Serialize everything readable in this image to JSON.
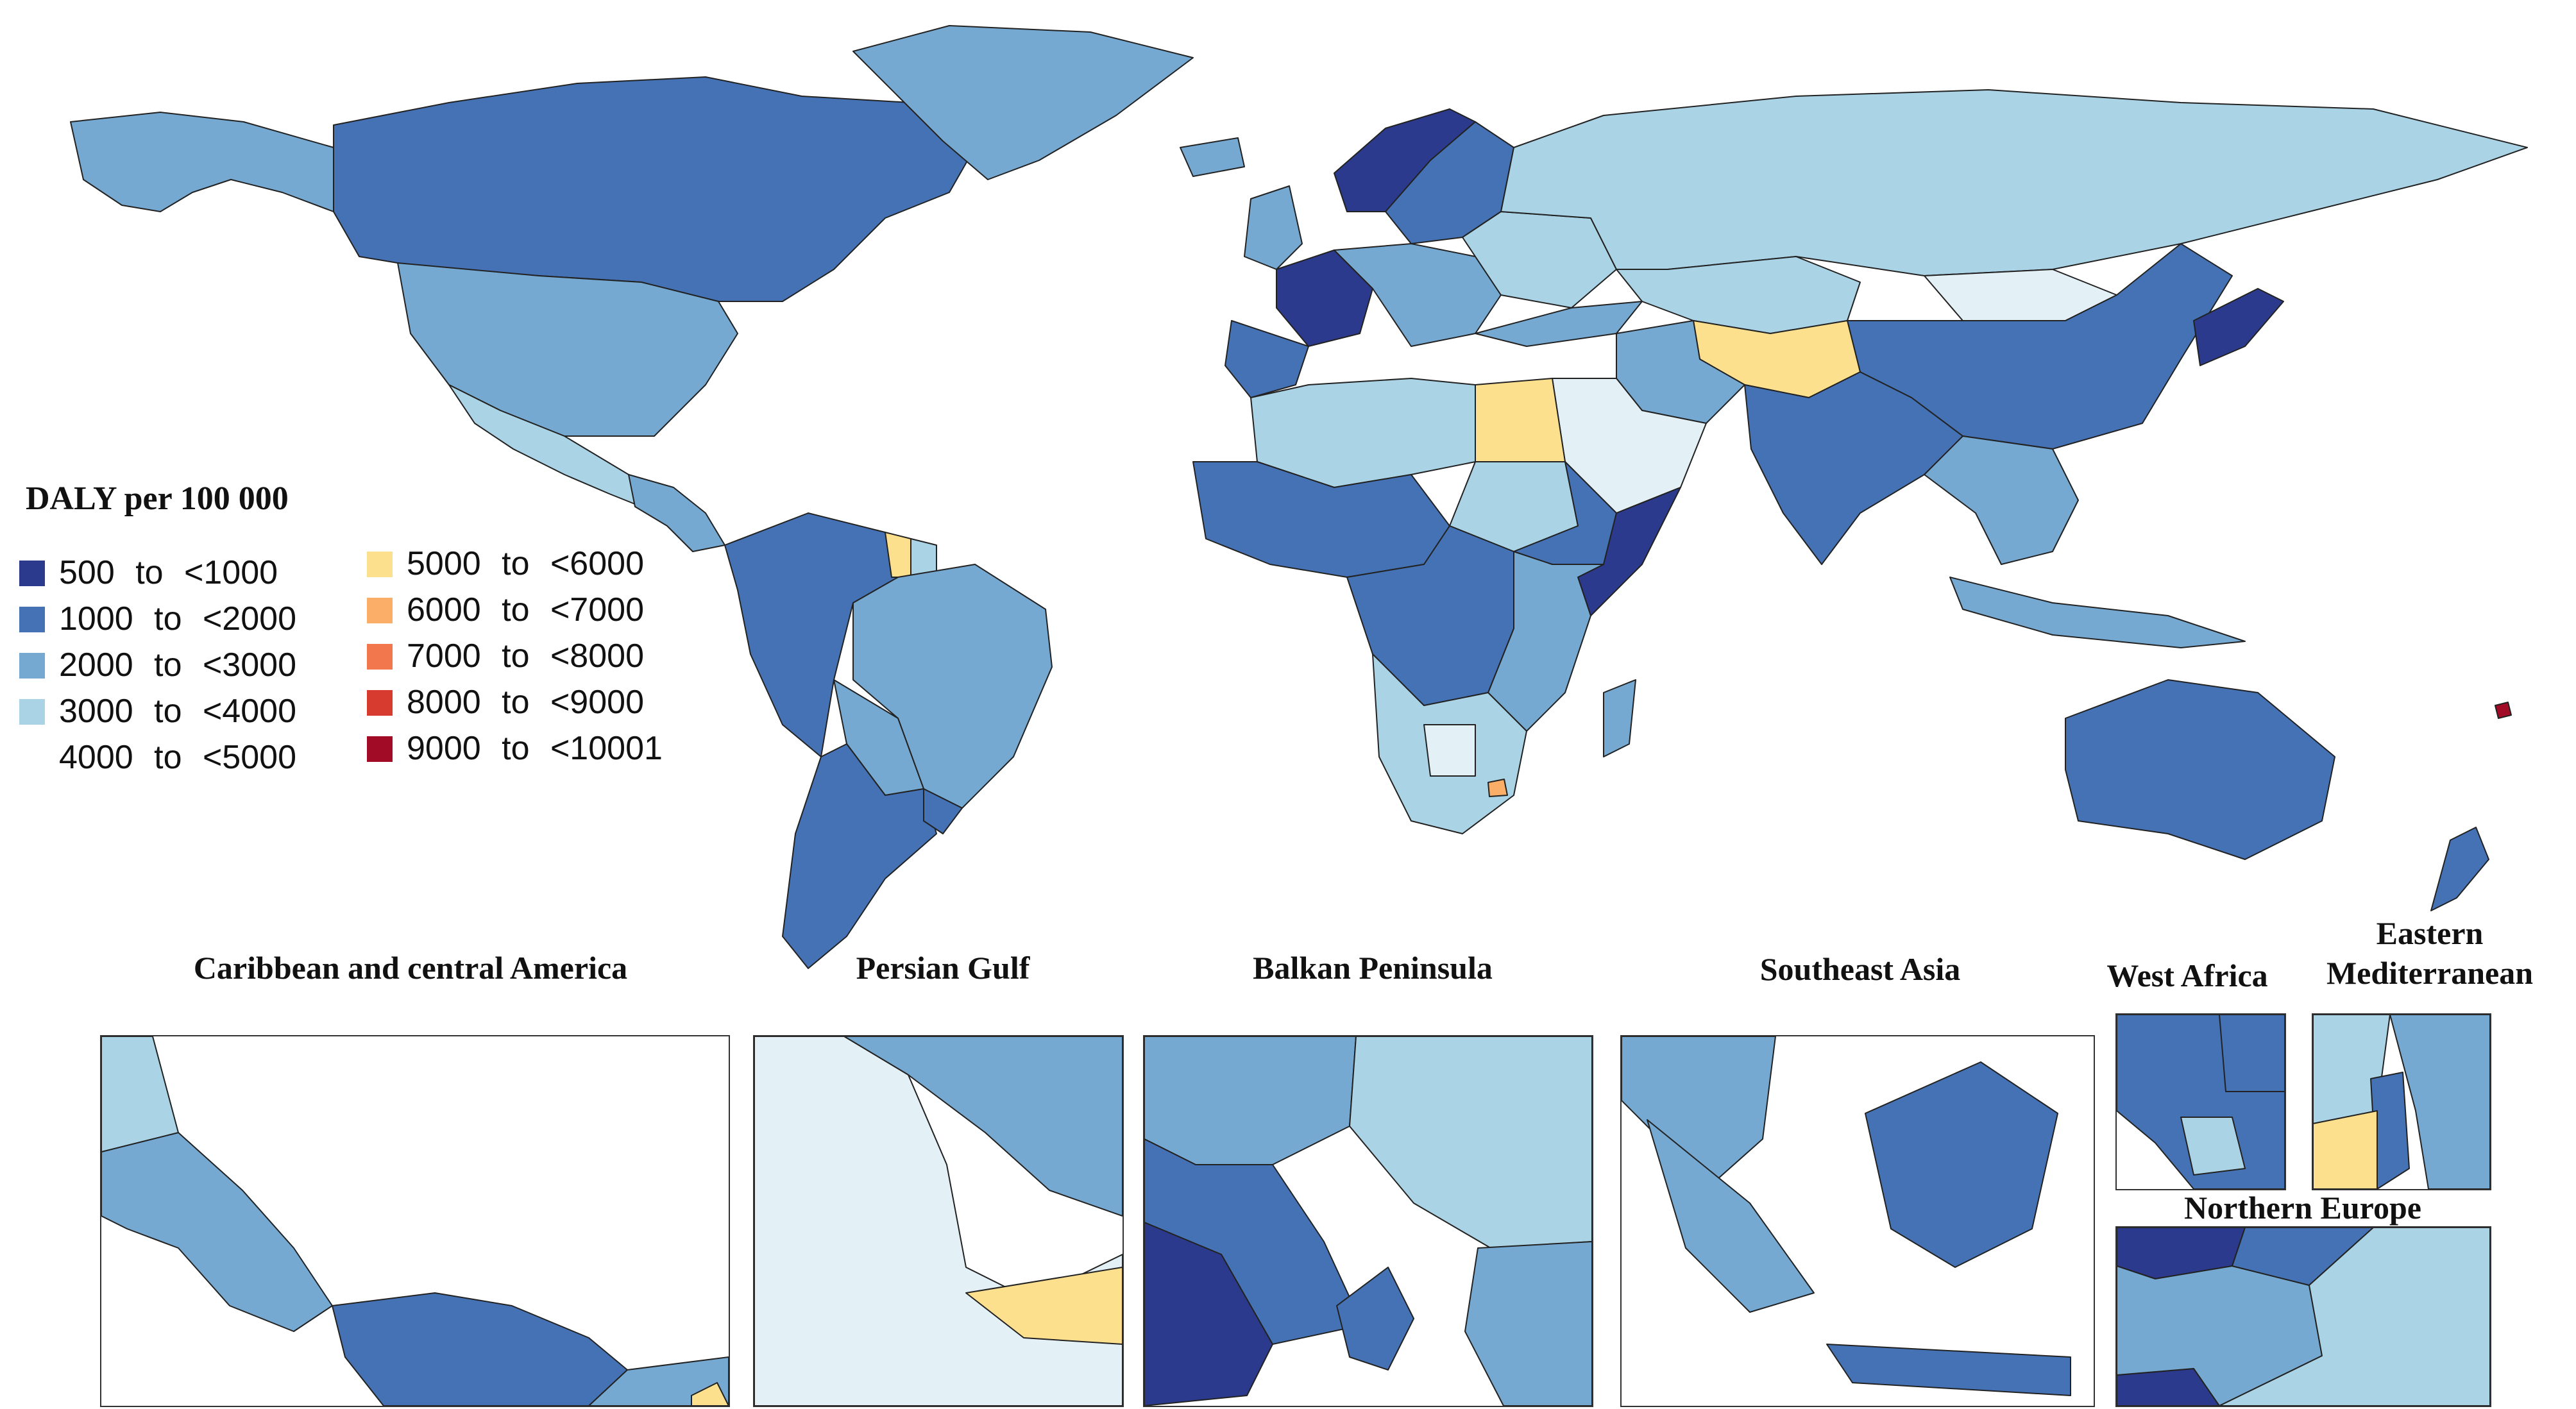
{
  "legend": {
    "title": "DALY per 100 000",
    "items": [
      {
        "label": "500 to <1000",
        "color": "#2b3a8c"
      },
      {
        "label": "1000 to <2000",
        "color": "#4472b5"
      },
      {
        "label": "2000 to <3000",
        "color": "#75a9d1"
      },
      {
        "label": "3000 to <4000",
        "color": "#aad4e6"
      },
      {
        "label": "4000 to <5000",
        "color": "#e3f1f7"
      },
      {
        "label": "5000 to <6000",
        "color": "#fde08e"
      },
      {
        "label": "6000 to <7000",
        "color": "#fbae68"
      },
      {
        "label": "7000 to <8000",
        "color": "#f3774c"
      },
      {
        "label": "8000 to <9000",
        "color": "#d73a2f"
      },
      {
        "label": "9000 to <10001",
        "color": "#a10b26"
      }
    ]
  },
  "insets": [
    {
      "title": "Caribbean and central America"
    },
    {
      "title": "Persian Gulf"
    },
    {
      "title": "Balkan Peninsula"
    },
    {
      "title": "Southeast Asia"
    },
    {
      "title": "West Africa"
    },
    {
      "title": "Eastern Mediterranean"
    },
    {
      "title": "Northern Europe"
    }
  ],
  "regions": [
    {
      "name": "Canada",
      "category": "1000 to <2000"
    },
    {
      "name": "United States",
      "category": "2000 to <3000"
    },
    {
      "name": "Alaska",
      "category": "2000 to <3000"
    },
    {
      "name": "Greenland",
      "category": "2000 to <3000"
    },
    {
      "name": "Mexico",
      "category": "3000 to <4000"
    },
    {
      "name": "Central America",
      "category": "2000 to <3000"
    },
    {
      "name": "Colombia / Venezuela / Ecuador / Peru",
      "category": "1000 to <2000"
    },
    {
      "name": "Guyana",
      "category": "5000 to <6000"
    },
    {
      "name": "Suriname",
      "category": "3000 to <4000"
    },
    {
      "name": "Brazil",
      "category": "2000 to <3000"
    },
    {
      "name": "Bolivia / Paraguay",
      "category": "2000 to <3000"
    },
    {
      "name": "Argentina / Chile",
      "category": "1000 to <2000"
    },
    {
      "name": "Uruguay",
      "category": "1000 to <2000"
    },
    {
      "name": "Iceland",
      "category": "2000 to <3000"
    },
    {
      "name": "United Kingdom / Ireland",
      "category": "2000 to <3000"
    },
    {
      "name": "Norway",
      "category": "500 to <1000"
    },
    {
      "name": "Sweden / Finland",
      "category": "1000 to <2000"
    },
    {
      "name": "France",
      "category": "500 to <1000"
    },
    {
      "name": "Spain / Portugal",
      "category": "1000 to <2000"
    },
    {
      "name": "Central Europe",
      "category": "2000 to <3000"
    },
    {
      "name": "Eastern Europe",
      "category": "3000 to <4000"
    },
    {
      "name": "Russia",
      "category": "3000 to <4000"
    },
    {
      "name": "Kazakhstan",
      "category": "3000 to <4000"
    },
    {
      "name": "Mongolia",
      "category": "4000 to <5000"
    },
    {
      "name": "China",
      "category": "1000 to <2000"
    },
    {
      "name": "Japan / Korea",
      "category": "500 to <1000"
    },
    {
      "name": "Central Asia / Afghanistan",
      "category": "5000 to <6000"
    },
    {
      "name": "Iran",
      "category": "2000 to <3000"
    },
    {
      "name": "Saudi Arabia / Yemen",
      "category": "4000 to <5000"
    },
    {
      "name": "Turkey",
      "category": "2000 to <3000"
    },
    {
      "name": "India / Pakistan",
      "category": "1000 to <2000"
    },
    {
      "name": "Southeast Asia",
      "category": "2000 to <3000"
    },
    {
      "name": "Indonesia",
      "category": "2000 to <3000"
    },
    {
      "name": "Australia",
      "category": "1000 to <2000"
    },
    {
      "name": "New Zealand",
      "category": "1000 to <2000"
    },
    {
      "name": "Egypt",
      "category": "5000 to <6000"
    },
    {
      "name": "North Africa",
      "category": "3000 to <4000"
    },
    {
      "name": "Sahel / West Africa",
      "category": "1000 to <2000"
    },
    {
      "name": "Sudan",
      "category": "3000 to <4000"
    },
    {
      "name": "Ethiopia",
      "category": "1000 to <2000"
    },
    {
      "name": "Somalia",
      "category": "500 to <1000"
    },
    {
      "name": "Central Africa",
      "category": "1000 to <2000"
    },
    {
      "name": "East Africa",
      "category": "2000 to <3000"
    },
    {
      "name": "Southern Africa",
      "category": "3000 to <4000"
    },
    {
      "name": "Botswana",
      "category": "4000 to <5000"
    },
    {
      "name": "Lesotho",
      "category": "6000 to <7000"
    },
    {
      "name": "Madagascar",
      "category": "2000 to <3000"
    },
    {
      "name": "Pacific islands",
      "category": "9000 to <10001"
    }
  ]
}
